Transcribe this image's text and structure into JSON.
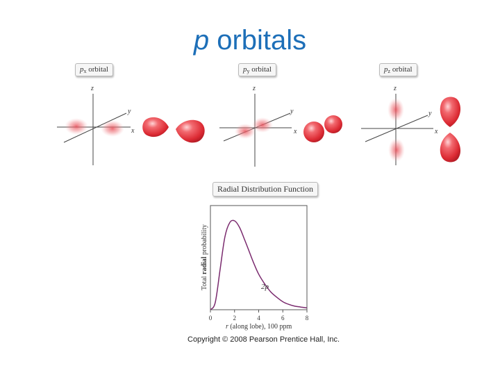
{
  "title": {
    "italic": "p",
    "rest": " orbitals"
  },
  "colors": {
    "title": "#1d6fb8",
    "lobe": "#e8363f",
    "curve": "#7a2a6e"
  },
  "panels": [
    {
      "orbital": "p",
      "subscript": "x",
      "suffix": " orbital",
      "axes": {
        "z": "z",
        "y": "y",
        "x": "x"
      }
    },
    {
      "orbital": "p",
      "subscript": "y",
      "suffix": " orbital",
      "axes": {
        "z": "z",
        "y": "y",
        "x": "x"
      }
    },
    {
      "orbital": "p",
      "subscript": "z",
      "suffix": " orbital",
      "axes": {
        "z": "z",
        "y": "y",
        "x": "x"
      }
    }
  ],
  "rdf": {
    "label": "Radial Distribution Function",
    "ylabel_pre": "Total ",
    "ylabel_bold": "radial",
    "ylabel_post": " probability",
    "xlabel_var": "r",
    "xlabel_rest": " (along lobe), 100 ppm",
    "curve_label": "2p"
  },
  "chart_data": {
    "type": "line",
    "title": "Radial Distribution Function",
    "xlabel": "r (along lobe), 100 ppm",
    "ylabel": "Total radial probability",
    "xlim": [
      0,
      8
    ],
    "x_ticks": [
      "0",
      "2",
      "4",
      "6",
      "8"
    ],
    "series": [
      {
        "name": "2p",
        "x": [
          0,
          0.4,
          0.8,
          1.2,
          1.6,
          2.0,
          2.4,
          2.8,
          3.2,
          3.6,
          4.0,
          4.5,
          5.0,
          5.5,
          6.0,
          6.5,
          7.0,
          7.5,
          8.0
        ],
        "y": [
          0.0,
          0.08,
          0.45,
          0.82,
          0.98,
          1.0,
          0.93,
          0.8,
          0.66,
          0.52,
          0.4,
          0.29,
          0.2,
          0.14,
          0.09,
          0.06,
          0.04,
          0.03,
          0.02
        ]
      }
    ]
  },
  "copyright": "Copyright © 2008 Pearson Prentice Hall, Inc."
}
